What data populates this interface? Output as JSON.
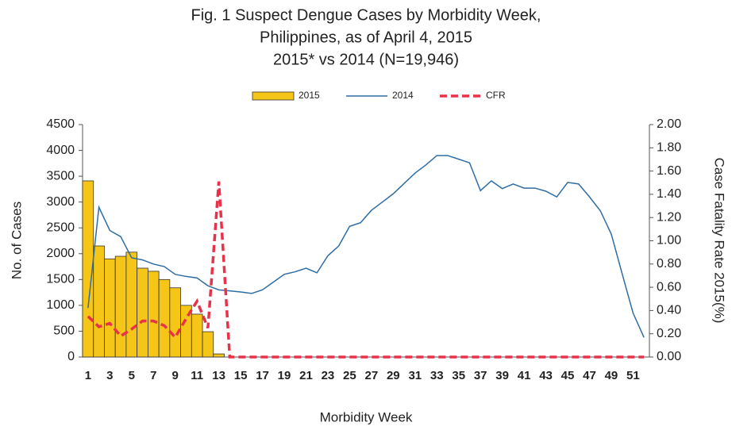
{
  "chart_data": {
    "type": "combo",
    "title": [
      "Fig. 1 Suspect Dengue Cases by Morbidity Week,",
      "Philippines, as of April 4, 2015",
      "2015* vs 2014 (N=19,946)"
    ],
    "x_label": "Morbidity Week",
    "y_label": "No. of Cases",
    "y2_label": "Case Fatality Rate 2015(%)",
    "categories": [
      1,
      null,
      3,
      null,
      5,
      null,
      7,
      null,
      9,
      null,
      11,
      null,
      13,
      null,
      15,
      null,
      17,
      null,
      19,
      null,
      21,
      null,
      23,
      null,
      25,
      null,
      27,
      null,
      29,
      null,
      31,
      null,
      33,
      null,
      35,
      null,
      37,
      null,
      39,
      null,
      41,
      null,
      43,
      null,
      45,
      null,
      47,
      null,
      49,
      null,
      51,
      null
    ],
    "ylim": [
      0,
      4500
    ],
    "yticks": [
      0,
      500,
      1000,
      1500,
      2000,
      2500,
      3000,
      3500,
      4000,
      4500
    ],
    "y2lim": [
      0,
      2
    ],
    "y2ticks": [
      {
        "value": 0,
        "label": "0.00"
      },
      {
        "value": 0.2,
        "label": "0.20"
      },
      {
        "value": 0.4,
        "label": "0.40"
      },
      {
        "value": 0.6,
        "label": "0.60"
      },
      {
        "value": 0.8,
        "label": "0.80"
      },
      {
        "value": 1.0,
        "label": "1.00"
      },
      {
        "value": 1.2,
        "label": "1.20"
      },
      {
        "value": 1.4,
        "label": "1.40"
      },
      {
        "value": 1.6,
        "label": "1.60"
      },
      {
        "value": 1.8,
        "label": "1.80"
      },
      {
        "value": 2.0,
        "label": "2.00"
      }
    ],
    "series": [
      {
        "name": "2015",
        "type": "bar",
        "color": "#f5c518",
        "values": [
          3410,
          2150,
          1900,
          1950,
          2030,
          1720,
          1660,
          1500,
          1340,
          1000,
          830,
          490,
          60,
          null,
          null,
          null,
          null,
          null,
          null,
          null,
          null,
          null,
          null,
          null,
          null,
          null,
          null,
          null,
          null,
          null,
          null,
          null,
          null,
          null,
          null,
          null,
          null,
          null,
          null,
          null,
          null,
          null,
          null,
          null,
          null,
          null,
          null,
          null,
          null,
          null,
          null,
          null
        ]
      },
      {
        "name": "2014",
        "type": "line",
        "color": "#2e6da4",
        "values": [
          950,
          2900,
          2450,
          2330,
          1920,
          1880,
          1800,
          1750,
          1600,
          1560,
          1530,
          1380,
          1300,
          1280,
          1260,
          1230,
          1300,
          1450,
          1600,
          1650,
          1720,
          1630,
          1960,
          2150,
          2530,
          2600,
          2840,
          3000,
          3160,
          3360,
          3560,
          3720,
          3900,
          3900,
          3830,
          3760,
          3220,
          3410,
          3260,
          3350,
          3270,
          3270,
          3210,
          3100,
          3380,
          3350,
          3100,
          2830,
          2380,
          1610,
          850,
          380
        ]
      },
      {
        "name": "CFR",
        "type": "line",
        "dashed": true,
        "axis": "y2",
        "color": "#e8324a",
        "values": [
          0.35,
          0.26,
          0.29,
          0.18,
          0.24,
          0.31,
          0.31,
          0.27,
          0.17,
          0.33,
          0.48,
          0.25,
          1.51,
          0,
          0,
          0,
          0,
          0,
          0,
          0,
          0,
          0,
          0,
          0,
          0,
          0,
          0,
          0,
          0,
          0,
          0,
          0,
          0,
          0,
          0,
          0,
          0,
          0,
          0,
          0,
          0,
          0,
          0,
          0,
          0,
          0,
          0,
          0,
          0,
          0,
          0,
          0
        ]
      }
    ]
  }
}
